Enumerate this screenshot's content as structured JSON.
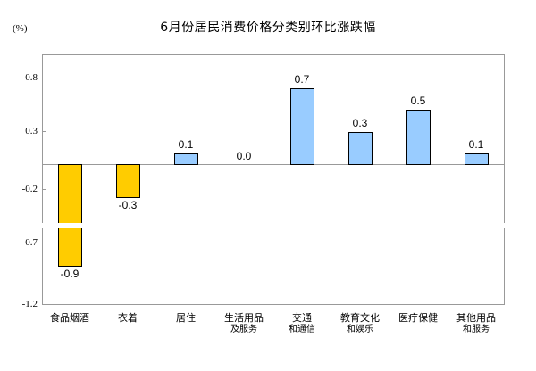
{
  "chart_data": {
    "type": "bar",
    "title": "6月份居民消费价格分类别环比涨跌幅",
    "ylabel": "(%)",
    "xlabel": "",
    "categories": [
      [
        "食品烟酒",
        ""
      ],
      [
        "衣着",
        ""
      ],
      [
        "居住",
        ""
      ],
      [
        "生活用品",
        "及服务"
      ],
      [
        "交通",
        "和通信"
      ],
      [
        "教育文化",
        "和娱乐"
      ],
      [
        "医疗保健",
        ""
      ],
      [
        "其他用品",
        "和服务"
      ]
    ],
    "values": [
      -0.9,
      -0.3,
      0.1,
      0.0,
      0.7,
      0.3,
      0.5,
      0.1
    ],
    "value_labels": [
      "-0.9",
      "-0.3",
      "0.1",
      "0.0",
      "0.7",
      "0.3",
      "0.5",
      "0.1"
    ],
    "yticks": [
      0.8,
      0.3,
      -0.2,
      -0.7,
      -1.2
    ],
    "ytick_labels": [
      "0.8",
      "0.3",
      "-0.2",
      "-0.7",
      "-1.2"
    ],
    "ylim": [
      -1.2,
      1.0
    ],
    "axis_break": true,
    "grid": false,
    "legend": null,
    "colors": {
      "positive": "#99CCFF",
      "negative": "#FFCC00",
      "border": "#000000",
      "frame": "#999999"
    }
  }
}
